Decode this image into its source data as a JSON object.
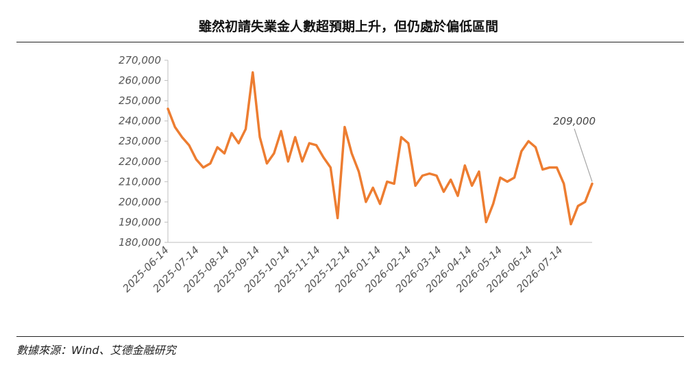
{
  "title": "雖然初請失業金人數超預期上升，但仍處於偏低區間",
  "source": "數據來源：Wind、艾德金融研究",
  "colors": {
    "series": "#ED7D31",
    "axis": "#BFBFBF",
    "annotation_line": "#A6A6A6",
    "text": "#555555"
  },
  "chart_data": {
    "type": "line",
    "title": "雖然初請失業金人數超預期上升，但仍處於偏低區間",
    "xlabel": "",
    "ylabel": "",
    "ylim": [
      180000,
      270000
    ],
    "yticks": [
      180000,
      190000,
      200000,
      210000,
      220000,
      230000,
      240000,
      250000,
      260000,
      270000
    ],
    "ytick_labels": [
      "180,000",
      "190,000",
      "200,000",
      "210,000",
      "220,000",
      "230,000",
      "240,000",
      "250,000",
      "260,000",
      "270,000"
    ],
    "xtick_labels": [
      "2025-06-14",
      "2025-07-14",
      "2025-08-14",
      "2025-09-14",
      "2025-10-14",
      "2025-11-14",
      "2025-12-14",
      "2026-01-14",
      "2026-02-14",
      "2026-03-14",
      "2026-04-14",
      "2026-05-14",
      "2026-06-14",
      "2026-07-14"
    ],
    "grid": false,
    "legend": "none",
    "series": [
      {
        "values": [
          246000,
          237000,
          232000,
          228000,
          221000,
          217000,
          219000,
          227000,
          224000,
          234000,
          229000,
          236000,
          264000,
          232000,
          219000,
          224000,
          235000,
          220000,
          232000,
          220000,
          229000,
          228000,
          222000,
          217000,
          192000,
          237000,
          224000,
          215000,
          200000,
          207000,
          199000,
          210000,
          209000,
          232000,
          229000,
          208000,
          213000,
          214000,
          213000,
          205000,
          211000,
          203000,
          218000,
          208000,
          215000,
          190000,
          199000,
          212000,
          210000,
          212000,
          225000,
          230000,
          227000,
          216000,
          217000,
          217000,
          209000,
          189000,
          198000,
          200000,
          209000
        ]
      }
    ],
    "annotations": [
      {
        "text": "209,000",
        "target": "last"
      }
    ]
  }
}
